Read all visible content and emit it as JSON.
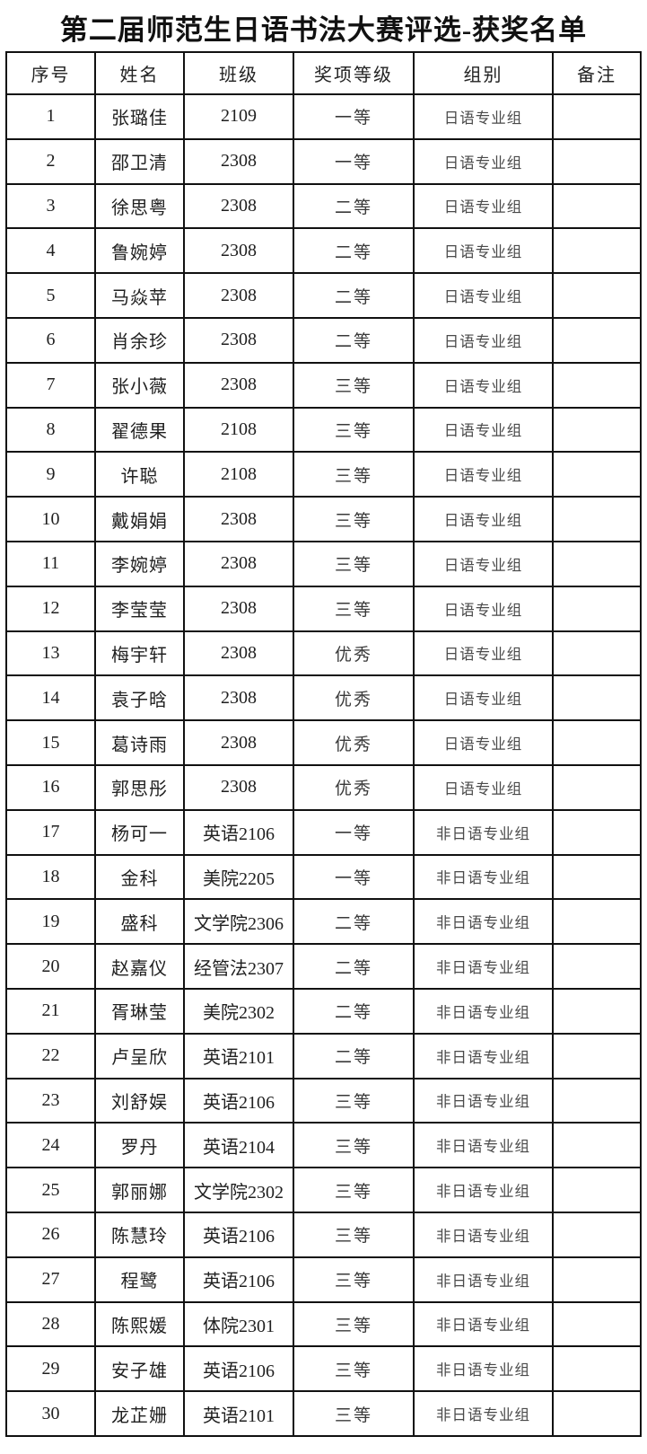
{
  "page": {
    "title": "第二届师范生日语书法大赛评选-获奖名单"
  },
  "table": {
    "headers": [
      "序号",
      "姓名",
      "班级",
      "奖项等级",
      "组别",
      "备注"
    ],
    "rows": [
      [
        "1",
        "张璐佳",
        "2109",
        "一等",
        "日语专业组",
        ""
      ],
      [
        "2",
        "邵卫清",
        "2308",
        "一等",
        "日语专业组",
        ""
      ],
      [
        "3",
        "徐思粤",
        "2308",
        "二等",
        "日语专业组",
        ""
      ],
      [
        "4",
        "鲁婉婷",
        "2308",
        "二等",
        "日语专业组",
        ""
      ],
      [
        "5",
        "马焱苹",
        "2308",
        "二等",
        "日语专业组",
        ""
      ],
      [
        "6",
        "肖余珍",
        "2308",
        "二等",
        "日语专业组",
        ""
      ],
      [
        "7",
        "张小薇",
        "2308",
        "三等",
        "日语专业组",
        ""
      ],
      [
        "8",
        "翟德果",
        "2108",
        "三等",
        "日语专业组",
        ""
      ],
      [
        "9",
        "许聪",
        "2108",
        "三等",
        "日语专业组",
        ""
      ],
      [
        "10",
        "戴娟娟",
        "2308",
        "三等",
        "日语专业组",
        ""
      ],
      [
        "11",
        "李婉婷",
        "2308",
        "三等",
        "日语专业组",
        ""
      ],
      [
        "12",
        "李莹莹",
        "2308",
        "三等",
        "日语专业组",
        ""
      ],
      [
        "13",
        "梅宇轩",
        "2308",
        "优秀",
        "日语专业组",
        ""
      ],
      [
        "14",
        "袁子晗",
        "2308",
        "优秀",
        "日语专业组",
        ""
      ],
      [
        "15",
        "葛诗雨",
        "2308",
        "优秀",
        "日语专业组",
        ""
      ],
      [
        "16",
        "郭思彤",
        "2308",
        "优秀",
        "日语专业组",
        ""
      ],
      [
        "17",
        "杨可一",
        "英语2106",
        "一等",
        "非日语专业组",
        ""
      ],
      [
        "18",
        "金科",
        "美院2205",
        "一等",
        "非日语专业组",
        ""
      ],
      [
        "19",
        "盛科",
        "文学院2306",
        "二等",
        "非日语专业组",
        ""
      ],
      [
        "20",
        "赵嘉仪",
        "经管法2307",
        "二等",
        "非日语专业组",
        ""
      ],
      [
        "21",
        "胥琳莹",
        "美院2302",
        "二等",
        "非日语专业组",
        ""
      ],
      [
        "22",
        "卢呈欣",
        "英语2101",
        "二等",
        "非日语专业组",
        ""
      ],
      [
        "23",
        "刘舒娱",
        "英语2106",
        "三等",
        "非日语专业组",
        ""
      ],
      [
        "24",
        "罗丹",
        "英语2104",
        "三等",
        "非日语专业组",
        ""
      ],
      [
        "25",
        "郭丽娜",
        "文学院2302",
        "三等",
        "非日语专业组",
        ""
      ],
      [
        "26",
        "陈慧玲",
        "英语2106",
        "三等",
        "非日语专业组",
        ""
      ],
      [
        "27",
        "程鹭",
        "英语2106",
        "三等",
        "非日语专业组",
        ""
      ],
      [
        "28",
        "陈熙媛",
        "体院2301",
        "三等",
        "非日语专业组",
        ""
      ],
      [
        "29",
        "安子雄",
        "英语2106",
        "三等",
        "非日语专业组",
        ""
      ],
      [
        "30",
        "龙芷姗",
        "英语2101",
        "三等",
        "非日语专业组",
        ""
      ]
    ]
  }
}
